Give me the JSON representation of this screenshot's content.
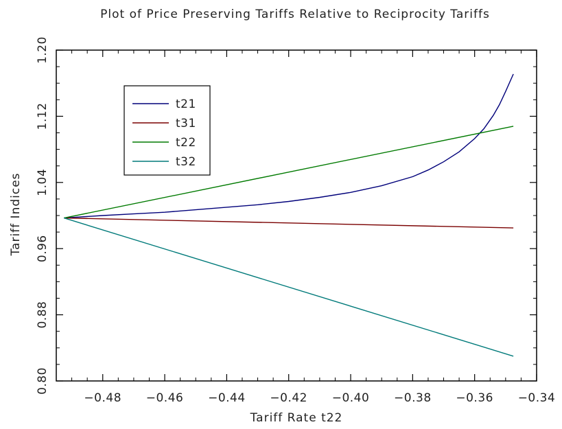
{
  "chart_data": {
    "type": "line",
    "title": "Plot of Price Preserving Tariffs Relative to Reciprocity Tariffs",
    "xlabel": "Tariff Rate t22",
    "ylabel": "Tariff Indices",
    "xlim": [
      -0.495,
      -0.34
    ],
    "ylim": [
      0.8,
      1.2
    ],
    "x_ticks": [
      -0.48,
      -0.46,
      -0.44,
      -0.42,
      -0.4,
      -0.38,
      -0.36,
      -0.34
    ],
    "x_tick_labels": [
      "−0.48",
      "−0.46",
      "−0.44",
      "−0.42",
      "−0.40",
      "−0.38",
      "−0.36",
      "−0.34"
    ],
    "y_ticks": [
      0.8,
      0.88,
      0.96,
      1.04,
      1.12,
      1.2
    ],
    "y_tick_labels": [
      "0.80",
      "0.88",
      "0.96",
      "1.04",
      "1.12",
      "1.20"
    ],
    "grid": false,
    "legend_position": "top-left",
    "series": [
      {
        "name": "t21",
        "color": "#00007a",
        "x": [
          -0.4925,
          -0.48,
          -0.47,
          -0.46,
          -0.45,
          -0.44,
          -0.43,
          -0.42,
          -0.41,
          -0.4,
          -0.39,
          -0.38,
          -0.375,
          -0.37,
          -0.365,
          -0.36,
          -0.357,
          -0.354,
          -0.352,
          -0.35,
          -0.3475
        ],
        "y": [
          0.997,
          1.0,
          1.002,
          1.004,
          1.007,
          1.01,
          1.013,
          1.017,
          1.022,
          1.028,
          1.036,
          1.047,
          1.055,
          1.065,
          1.077,
          1.093,
          1.105,
          1.121,
          1.134,
          1.15,
          1.171
        ]
      },
      {
        "name": "t31",
        "color": "#7a0000",
        "x": [
          -0.4925,
          -0.3475
        ],
        "y": [
          0.997,
          0.985
        ]
      },
      {
        "name": "t22",
        "color": "#007a00",
        "x": [
          -0.4925,
          -0.3475
        ],
        "y": [
          0.997,
          1.108
        ]
      },
      {
        "name": "t32",
        "color": "#007a7a",
        "x": [
          -0.4925,
          -0.3475
        ],
        "y": [
          0.997,
          0.83
        ]
      }
    ]
  }
}
